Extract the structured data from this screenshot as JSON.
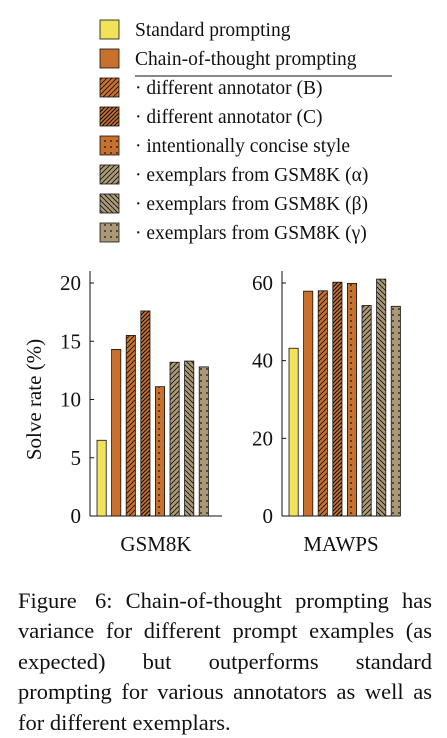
{
  "legend": [
    {
      "label": "Standard prompting",
      "color": "#f2e25a",
      "pattern": "solid"
    },
    {
      "label": "Chain-of-thought prompting",
      "color": "#c8702e",
      "pattern": "solid"
    },
    {
      "label": "· different annotator (B)",
      "color": "#c8702e",
      "pattern": "hatch-ne"
    },
    {
      "label": "· different annotator (C)",
      "color": "#c8702e",
      "pattern": "hatch-ne-dense"
    },
    {
      "label": "· intentionally concise style",
      "color": "#c8702e",
      "pattern": "dots"
    },
    {
      "label": "· exemplars from GSM8K (α)",
      "color": "#ab9877",
      "pattern": "hatch-ne"
    },
    {
      "label": "· exemplars from GSM8K (β)",
      "color": "#ab9877",
      "pattern": "hatch-nw"
    },
    {
      "label": "· exemplars from GSM8K (γ)",
      "color": "#ab9877",
      "pattern": "dots"
    }
  ],
  "chart_data": [
    {
      "type": "bar",
      "title": "",
      "xlabel": "GSM8K",
      "ylabel": "Solve rate (%)",
      "ylim": [
        0,
        20
      ],
      "yticks": [
        0,
        5,
        10,
        15,
        20
      ],
      "grid": false,
      "series": [
        {
          "name": "Standard prompting",
          "values": [
            6.5
          ]
        },
        {
          "name": "Chain-of-thought prompting",
          "values": [
            14.3
          ]
        },
        {
          "name": "· different annotator (B)",
          "values": [
            15.5
          ]
        },
        {
          "name": "· different annotator (C)",
          "values": [
            17.6
          ]
        },
        {
          "name": "· intentionally concise style",
          "values": [
            11.1
          ]
        },
        {
          "name": "· exemplars from GSM8K (α)",
          "values": [
            13.2
          ]
        },
        {
          "name": "· exemplars from GSM8K (β)",
          "values": [
            13.3
          ]
        },
        {
          "name": "· exemplars from GSM8K (γ)",
          "values": [
            12.8
          ]
        }
      ]
    },
    {
      "type": "bar",
      "title": "",
      "xlabel": "MAWPS",
      "ylabel": "",
      "ylim": [
        0,
        62
      ],
      "yticks": [
        0,
        20,
        40,
        60
      ],
      "grid": false,
      "series": [
        {
          "name": "Standard prompting",
          "values": [
            43.2
          ]
        },
        {
          "name": "Chain-of-thought prompting",
          "values": [
            57.9
          ]
        },
        {
          "name": "· different annotator (B)",
          "values": [
            58.0
          ]
        },
        {
          "name": "· different annotator (C)",
          "values": [
            60.2
          ]
        },
        {
          "name": "· intentionally concise style",
          "values": [
            59.9
          ]
        },
        {
          "name": "· exemplars from GSM8K (α)",
          "values": [
            54.2
          ]
        },
        {
          "name": "· exemplars from GSM8K (β)",
          "values": [
            61.0
          ]
        },
        {
          "name": "· exemplars from GSM8K (γ)",
          "values": [
            54.0
          ]
        }
      ]
    }
  ],
  "caption": {
    "label": "Figure 6:",
    "text": "Chain-of-thought prompting has variance for different prompt examples (as expected) but outperforms standard prompting for various annotators as well as for different exemplars."
  }
}
